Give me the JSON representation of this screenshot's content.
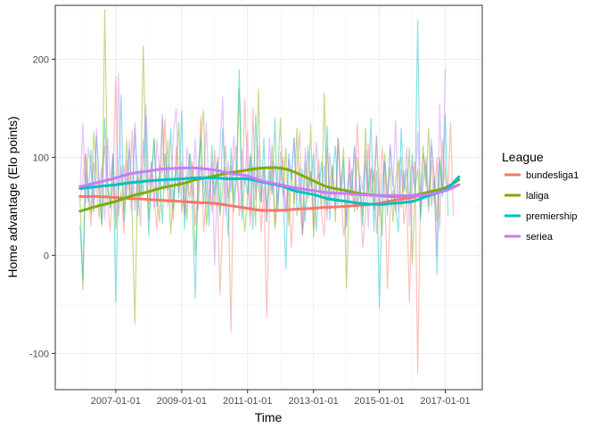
{
  "chart_data": {
    "type": "line",
    "title": "",
    "xlabel": "Time",
    "ylabel": "Home advantage (Elo points)",
    "xlim": [
      "2005-03-01",
      "2018-02-15"
    ],
    "ylim": [
      -137,
      255
    ],
    "x_ticks": [
      "2007-01-01",
      "2009-01-01",
      "2011-01-01",
      "2013-01-01",
      "2015-01-01",
      "2017-01-01"
    ],
    "y_ticks": [
      -100,
      0,
      100,
      200
    ],
    "y_tick_labels": [
      "-100",
      "0",
      "100",
      "200"
    ],
    "grid": true,
    "legend": {
      "title": "League",
      "placement": "right"
    },
    "colors": {
      "bundesliga1": "#F8766D",
      "laliga": "#7CAE00",
      "premiership": "#00BFC4",
      "seriea": "#C77CFF"
    },
    "smooth_series": [
      {
        "name": "bundesliga1",
        "x": [
          "2005-12-01",
          "2006-06-01",
          "2007-01-01",
          "2007-06-01",
          "2008-01-01",
          "2008-06-01",
          "2009-01-01",
          "2009-06-01",
          "2010-01-01",
          "2010-06-01",
          "2011-01-01",
          "2011-06-01",
          "2012-01-01",
          "2012-06-01",
          "2013-01-01",
          "2013-06-01",
          "2014-01-01",
          "2014-06-01",
          "2015-01-01",
          "2015-06-01",
          "2016-01-01",
          "2016-06-01",
          "2017-01-01",
          "2017-06-01"
        ],
        "values": [
          60,
          60,
          59,
          58,
          57,
          56,
          55,
          54,
          53,
          51,
          48,
          46,
          46,
          47,
          48,
          49,
          50,
          51,
          53,
          56,
          59,
          63,
          67,
          72
        ]
      },
      {
        "name": "laliga",
        "x": [
          "2005-12-01",
          "2006-06-01",
          "2007-01-01",
          "2007-06-01",
          "2008-01-01",
          "2008-06-01",
          "2009-01-01",
          "2009-06-01",
          "2010-01-01",
          "2010-06-01",
          "2011-01-01",
          "2011-06-01",
          "2012-01-01",
          "2012-06-01",
          "2013-01-01",
          "2013-06-01",
          "2014-01-01",
          "2014-06-01",
          "2015-01-01",
          "2015-06-01",
          "2016-01-01",
          "2016-06-01",
          "2017-01-01",
          "2017-06-01"
        ],
        "values": [
          45,
          50,
          55,
          60,
          65,
          69,
          73,
          77,
          81,
          84,
          87,
          89,
          89,
          85,
          76,
          70,
          66,
          63,
          61,
          60,
          61,
          64,
          69,
          77
        ]
      },
      {
        "name": "premiership",
        "x": [
          "2005-12-01",
          "2006-06-01",
          "2007-01-01",
          "2007-06-01",
          "2008-01-01",
          "2008-06-01",
          "2009-01-01",
          "2009-06-01",
          "2010-01-01",
          "2010-06-01",
          "2011-01-01",
          "2011-06-01",
          "2012-01-01",
          "2012-06-01",
          "2013-01-01",
          "2013-06-01",
          "2014-01-01",
          "2014-06-01",
          "2015-01-01",
          "2015-06-01",
          "2016-01-01",
          "2016-06-01",
          "2017-01-01",
          "2017-06-01"
        ],
        "values": [
          68,
          70,
          72,
          74,
          76,
          77,
          78,
          79,
          79,
          78,
          78,
          75,
          71,
          66,
          62,
          58,
          55,
          53,
          52,
          53,
          55,
          60,
          67,
          80
        ]
      },
      {
        "name": "seriea",
        "x": [
          "2005-12-01",
          "2006-06-01",
          "2007-01-01",
          "2007-06-01",
          "2008-01-01",
          "2008-06-01",
          "2009-01-01",
          "2009-06-01",
          "2010-01-01",
          "2010-06-01",
          "2011-01-01",
          "2011-06-01",
          "2012-01-01",
          "2012-06-01",
          "2013-01-01",
          "2013-06-01",
          "2014-01-01",
          "2014-06-01",
          "2015-01-01",
          "2015-06-01",
          "2016-01-01",
          "2016-06-01",
          "2017-01-01",
          "2017-06-01"
        ],
        "values": [
          70,
          74,
          79,
          83,
          86,
          88,
          89,
          89,
          87,
          84,
          81,
          76,
          72,
          69,
          66,
          64,
          63,
          62,
          61,
          61,
          61,
          62,
          66,
          72
        ]
      }
    ],
    "raw_series": [
      {
        "name": "bundesliga1",
        "x_start": "2005-12-01",
        "step_months": 1,
        "values": [
          55,
          78,
          104,
          62,
          30,
          95,
          70,
          38,
          88,
          112,
          54,
          25,
          76,
          183,
          40,
          66,
          22,
          98,
          59,
          128,
          45,
          80,
          30,
          118,
          74,
          52,
          96,
          60,
          26,
          92,
          84,
          140,
          50,
          70,
          35,
          112,
          64,
          88,
          40,
          76,
          58,
          96,
          30,
          70,
          142,
          24,
          62,
          88,
          44,
          108,
          60,
          -40,
          34,
          90,
          58,
          -78,
          96,
          112,
          40,
          62,
          160,
          84,
          30,
          150,
          56,
          88,
          24,
          70,
          -64,
          52,
          96,
          30,
          60,
          78,
          100,
          44,
          72,
          8,
          58,
          90,
          126,
          22,
          50,
          60,
          86,
          28,
          68,
          98,
          40,
          20,
          112,
          56,
          90,
          46,
          120,
          68,
          20,
          42,
          100,
          64,
          50,
          136,
          64,
          8,
          42,
          114,
          58,
          88,
          22,
          60,
          110,
          70,
          -34,
          46,
          66,
          44,
          88,
          100,
          32,
          60,
          -48,
          72,
          96,
          -121,
          62,
          104,
          84,
          44,
          98,
          52,
          100,
          26,
          118,
          80,
          66,
          136,
          40
        ]
      },
      {
        "name": "laliga",
        "x_start": "2005-12-01",
        "step_months": 1,
        "values": [
          58,
          -35,
          104,
          70,
          42,
          126,
          88,
          60,
          30,
          251,
          82,
          48,
          104,
          26,
          66,
          92,
          44,
          118,
          73,
          40,
          -70,
          84,
          58,
          214,
          100,
          36,
          82,
          120,
          58,
          34,
          140,
          68,
          118,
          22,
          60,
          90,
          136,
          44,
          72,
          36,
          104,
          82,
          0,
          56,
          120,
          148,
          30,
          64,
          86,
          52,
          100,
          40,
          68,
          112,
          58,
          92,
          44,
          80,
          170,
          64,
          24,
          58,
          104,
          76,
          30,
          170,
          54,
          90,
          48,
          70,
          112,
          26,
          82,
          140,
          60,
          110,
          30,
          86,
          52,
          130,
          62,
          20,
          96,
          58,
          134,
          18,
          72,
          84,
          50,
          166,
          46,
          76,
          92,
          34,
          120,
          64,
          110,
          -34,
          58,
          88,
          44,
          100,
          70,
          40,
          130,
          64,
          88,
          46,
          122,
          58,
          20,
          104,
          62,
          90,
          34,
          78,
          98,
          48,
          86,
          60,
          110,
          -10,
          66,
          88,
          42,
          112,
          70,
          130,
          50,
          80,
          34,
          100,
          66,
          88
        ]
      },
      {
        "name": "premiership",
        "x_start": "2005-12-01",
        "step_months": 1,
        "values": [
          30,
          -26,
          88,
          54,
          108,
          44,
          122,
          76,
          32,
          140,
          70,
          48,
          100,
          -48,
          80,
          164,
          34,
          68,
          108,
          56,
          130,
          40,
          88,
          60,
          142,
          20,
          76,
          118,
          50,
          86,
          32,
          104,
          66,
          130,
          46,
          90,
          58,
          148,
          26,
          76,
          104,
          40,
          -44,
          88,
          120,
          54,
          80,
          30,
          112,
          62,
          96,
          44,
          130,
          72,
          20,
          110,
          54,
          88,
          190,
          36,
          82,
          62,
          100,
          26,
          144,
          70,
          54,
          120,
          34,
          88,
          62,
          140,
          44,
          92,
          58,
          -14,
          104,
          76,
          120,
          40,
          60,
          88,
          34,
          112,
          70,
          104,
          24,
          66,
          96,
          50,
          132,
          36,
          80,
          112,
          52,
          74,
          98,
          28,
          84,
          60,
          110,
          46,
          72,
          30,
          96,
          64,
          140,
          24,
          86,
          -54,
          58,
          96,
          40,
          112,
          76,
          50,
          24,
          130,
          66,
          88,
          52,
          104,
          60,
          240,
          36,
          72,
          94,
          50,
          112,
          80,
          -20,
          96,
          60,
          144,
          40
        ]
      },
      {
        "name": "seriea",
        "x_start": "2005-12-01",
        "step_months": 1,
        "values": [
          68,
          134,
          52,
          110,
          88,
          44,
          130,
          66,
          90,
          36,
          120,
          76,
          104,
          40,
          186,
          70,
          92,
          58,
          118,
          44,
          136,
          82,
          60,
          104,
          154,
          72,
          96,
          48,
          118,
          84,
          144,
          66,
          92,
          56,
          124,
          150,
          70,
          96,
          42,
          110,
          84,
          60,
          120,
          46,
          92,
          68,
          136,
          54,
          96,
          -10,
          78,
          110,
          162,
          40,
          96,
          64,
          122,
          84,
          50,
          108,
          72,
          126,
          40,
          92,
          66,
          112,
          58,
          88,
          34,
          120,
          64,
          94,
          50,
          106,
          72,
          42,
          98,
          80,
          120,
          56,
          90,
          20,
          110,
          66,
          84,
          46,
          116,
          78,
          60,
          92,
          36,
          104,
          72,
          48,
          118,
          60,
          86,
          30,
          98,
          64,
          112,
          46,
          82,
          66,
          108,
          28,
          90,
          74,
          122,
          40,
          80,
          96,
          56,
          114,
          70,
          138,
          44,
          88,
          64,
          110,
          30,
          92,
          68,
          126,
          50,
          84,
          100,
          58,
          120,
          76,
          0,
          154,
          62,
          190
        ]
      }
    ]
  }
}
